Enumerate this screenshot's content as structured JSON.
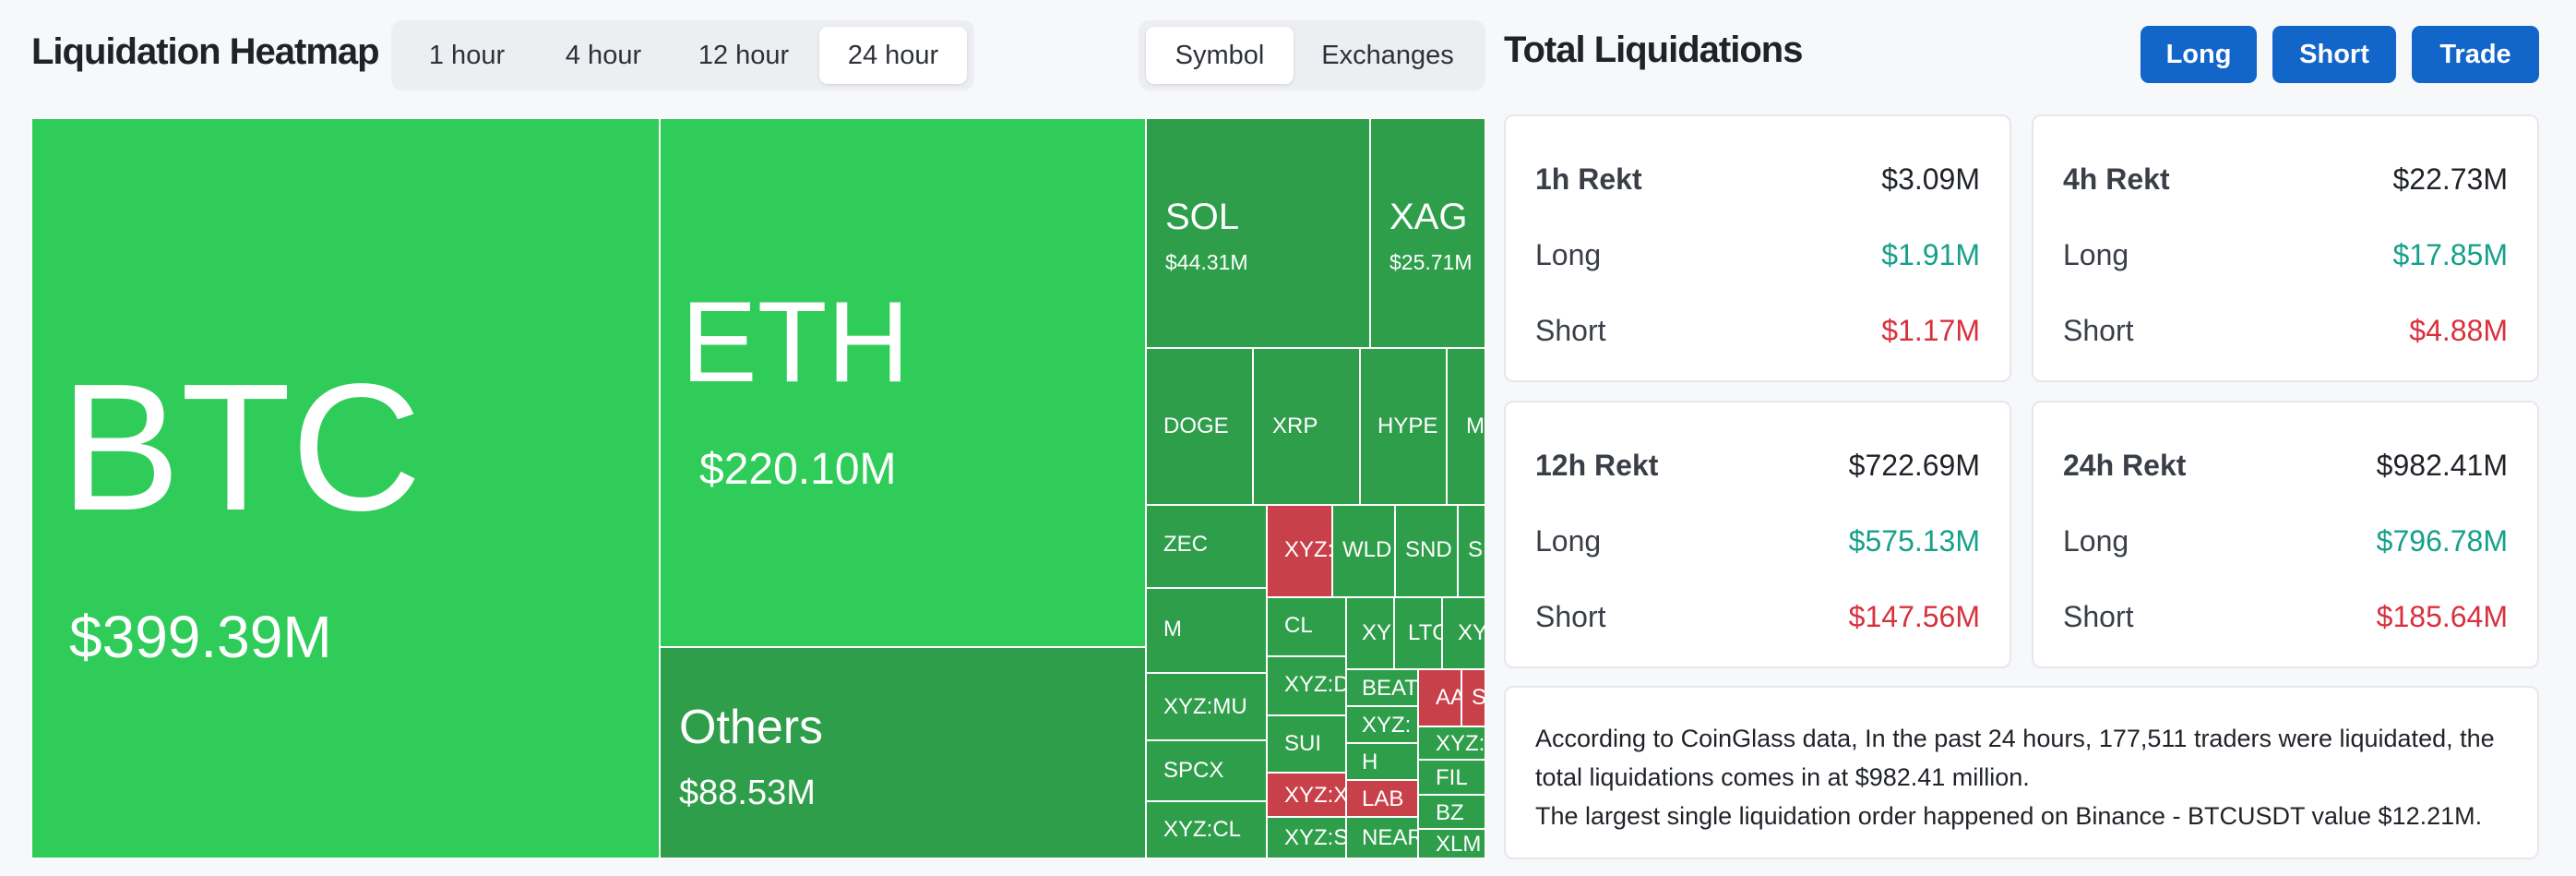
{
  "heatmap": {
    "title": "Liquidation Heatmap",
    "time_tabs": [
      {
        "label": "1 hour",
        "active": false
      },
      {
        "label": "4 hour",
        "active": false
      },
      {
        "label": "12 hour",
        "active": false
      },
      {
        "label": "24 hour",
        "active": true
      }
    ],
    "view_tabs": [
      {
        "label": "Symbol",
        "active": true
      },
      {
        "label": "Exchanges",
        "active": false
      }
    ],
    "tiles": [
      {
        "symbol": "BTC",
        "value": "$399.39M",
        "trend": "long"
      },
      {
        "symbol": "ETH",
        "value": "$220.10M",
        "trend": "long"
      },
      {
        "symbol": "Others",
        "value": "$88.53M",
        "trend": "long"
      },
      {
        "symbol": "SOL",
        "value": "$44.31M",
        "trend": "long"
      },
      {
        "symbol": "XAG",
        "value": "$25.71M",
        "trend": "long"
      },
      {
        "symbol": "DOGE",
        "trend": "long"
      },
      {
        "symbol": "XRP",
        "trend": "long"
      },
      {
        "symbol": "HYPE",
        "trend": "long"
      },
      {
        "symbol": "MU",
        "trend": "long"
      },
      {
        "symbol": "ZEC",
        "trend": "long"
      },
      {
        "symbol": "XYZ:",
        "trend": "short"
      },
      {
        "symbol": "WLD",
        "trend": "long"
      },
      {
        "symbol": "SND",
        "trend": "long"
      },
      {
        "symbol": "S",
        "trend": "long"
      },
      {
        "symbol": "M",
        "trend": "long"
      },
      {
        "symbol": "CL",
        "trend": "long"
      },
      {
        "symbol": "XY",
        "trend": "long"
      },
      {
        "symbol": "LTC",
        "trend": "long"
      },
      {
        "symbol": "XY",
        "trend": "long"
      },
      {
        "symbol": "XYZ:MU",
        "trend": "long"
      },
      {
        "symbol": "XYZ:D",
        "trend": "long"
      },
      {
        "symbol": "BEAT",
        "trend": "long"
      },
      {
        "symbol": "AA",
        "trend": "short"
      },
      {
        "symbol": "S",
        "trend": "short"
      },
      {
        "symbol": "XYZ:",
        "trend": "long"
      },
      {
        "symbol": "SPCX",
        "trend": "long"
      },
      {
        "symbol": "SUI",
        "trend": "long"
      },
      {
        "symbol": "XYZ:",
        "trend": "long"
      },
      {
        "symbol": "H",
        "trend": "long"
      },
      {
        "symbol": "FIL",
        "trend": "long"
      },
      {
        "symbol": "XYZ:CL",
        "trend": "long"
      },
      {
        "symbol": "XYZ:X",
        "trend": "short"
      },
      {
        "symbol": "LAB",
        "trend": "short"
      },
      {
        "symbol": "BZ",
        "trend": "long"
      },
      {
        "symbol": "XYZ:S",
        "trend": "long"
      },
      {
        "symbol": "NEAR",
        "trend": "long"
      },
      {
        "symbol": "XLM",
        "trend": "long"
      }
    ]
  },
  "totals": {
    "title": "Total Liquidations",
    "buttons": [
      "Long",
      "Short",
      "Trade"
    ],
    "cards": [
      {
        "period": "1h Rekt",
        "total": "$3.09M",
        "long_label": "Long",
        "long": "$1.91M",
        "short_label": "Short",
        "short": "$1.17M"
      },
      {
        "period": "4h Rekt",
        "total": "$22.73M",
        "long_label": "Long",
        "long": "$17.85M",
        "short_label": "Short",
        "short": "$4.88M"
      },
      {
        "period": "12h Rekt",
        "total": "$722.69M",
        "long_label": "Long",
        "long": "$575.13M",
        "short_label": "Short",
        "short": "$147.56M"
      },
      {
        "period": "24h Rekt",
        "total": "$982.41M",
        "long_label": "Long",
        "long": "$796.78M",
        "short_label": "Short",
        "short": "$185.64M"
      }
    ],
    "summary_line1": "According to CoinGlass data, In the past 24 hours, 177,511 traders were liquidated, the total liquidations comes in at $982.41 million.",
    "summary_line2": "The largest single liquidation order happened on Binance - BTCUSDT value $12.21M."
  },
  "colors": {
    "long_bright": "#30cc5a",
    "long_dark": "#2f9e4b",
    "short": "#c8404a",
    "accent": "#1265c9",
    "green_text": "#16a08a",
    "red_text": "#d8313e"
  }
}
